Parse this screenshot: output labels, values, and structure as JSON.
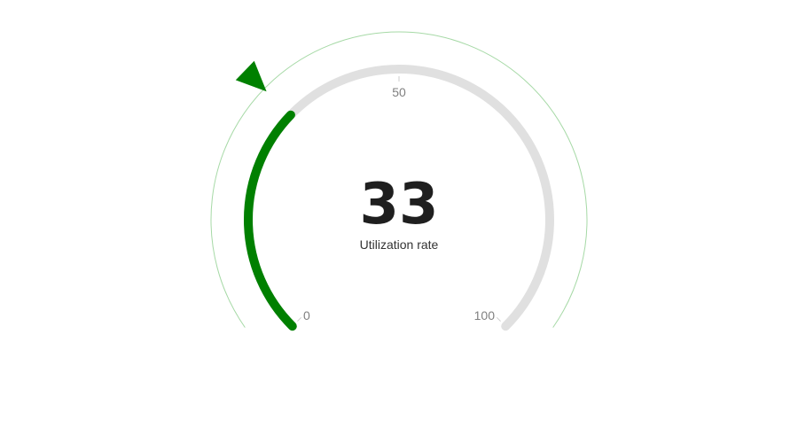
{
  "chart_data": {
    "type": "gauge",
    "value": 33,
    "min": 0,
    "max": 100,
    "label": "Utilization rate",
    "ticks": [
      {
        "value": 0,
        "label": "0"
      },
      {
        "value": 50,
        "label": "50"
      },
      {
        "value": 100,
        "label": "100"
      }
    ],
    "colors": {
      "progress": "#008000",
      "track": "#e0e0e0",
      "outer_ring": "#a6d9a6",
      "pointer": "#008000",
      "value_text": "#1f1f1f",
      "label_text": "#333333",
      "tick_text": "#808080"
    }
  }
}
